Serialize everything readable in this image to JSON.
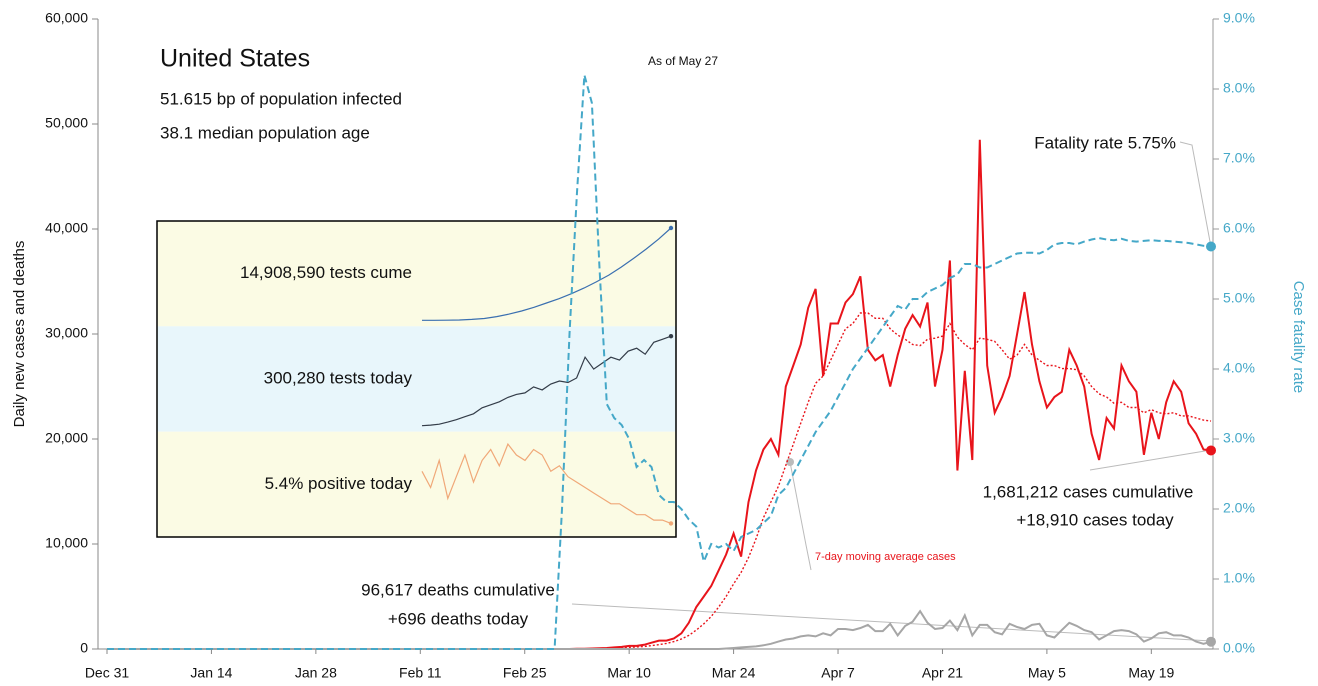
{
  "chart_data": {
    "type": "line",
    "title": "United States",
    "subtitle": [
      "51.615 bp of population infected",
      "38.1 median population age"
    ],
    "date_note": "As of May 27",
    "ylabel": "Daily new cases and deaths",
    "y2label": "Case fatality rate",
    "annotations": {
      "fatality": "Fatality rate 5.75%",
      "cases": [
        "1,681,212 cases cumulative",
        "+18,910 cases today"
      ],
      "deaths": [
        "96,617 deaths cumulative",
        "+696 deaths today"
      ],
      "moving_average": "7-day moving average cases"
    },
    "ylim": [
      0,
      60000
    ],
    "yticks": [
      0,
      {
        "value": 10000,
        "label": "10,000"
      },
      {
        "value": 20000,
        "label": "20,000"
      },
      {
        "value": 30000,
        "label": "30,000"
      },
      {
        "value": 40000,
        "label": "40,000"
      },
      {
        "value": 50000,
        "label": "50,000"
      },
      {
        "value": 60000,
        "label": "60,000"
      }
    ],
    "y2lim": [
      0,
      9
    ],
    "y2ticks": [
      {
        "value": 0,
        "label": "0.0%"
      },
      {
        "value": 1,
        "label": "1.0%"
      },
      {
        "value": 2,
        "label": "2.0%"
      },
      {
        "value": 3,
        "label": "3.0%"
      },
      {
        "value": 4,
        "label": "4.0%"
      },
      {
        "value": 5,
        "label": "5.0%"
      },
      {
        "value": 6,
        "label": "6.0%"
      },
      {
        "value": 7,
        "label": "7.0%"
      },
      {
        "value": 8,
        "label": "8.0%"
      },
      {
        "value": 9,
        "label": "9.0%"
      }
    ],
    "categories": [
      "Dec 31",
      null,
      null,
      null,
      null,
      null,
      null,
      null,
      null,
      null,
      null,
      null,
      null,
      null,
      "Jan 14",
      null,
      null,
      null,
      null,
      null,
      null,
      null,
      null,
      null,
      null,
      null,
      null,
      null,
      "Jan 28",
      null,
      null,
      null,
      null,
      null,
      null,
      null,
      null,
      null,
      null,
      null,
      null,
      null,
      "Feb 11",
      null,
      null,
      null,
      null,
      null,
      null,
      null,
      null,
      null,
      null,
      null,
      null,
      null,
      "Feb 25",
      null,
      null,
      null,
      null,
      null,
      null,
      null,
      null,
      null,
      null,
      null,
      null,
      null,
      "Mar 10",
      null,
      null,
      null,
      null,
      null,
      null,
      null,
      null,
      null,
      null,
      null,
      null,
      null,
      "Mar 24",
      null,
      null,
      null,
      null,
      null,
      null,
      null,
      null,
      null,
      null,
      null,
      null,
      null,
      "Apr 7",
      null,
      null,
      null,
      null,
      null,
      null,
      null,
      null,
      null,
      null,
      null,
      null,
      null,
      "Apr 21",
      null,
      null,
      null,
      null,
      null,
      null,
      null,
      null,
      null,
      null,
      null,
      null,
      null,
      "May 5",
      null,
      null,
      null,
      null,
      null,
      null,
      null,
      null,
      null,
      null,
      null,
      null,
      null,
      "May 19",
      null,
      null,
      null,
      null,
      null,
      null,
      null,
      null
    ],
    "series": [
      {
        "name": "Daily new cases",
        "color": "#e8141b",
        "dash": "solid",
        "marker_last": true,
        "values": [
          0,
          0,
          0,
          0,
          0,
          0,
          0,
          0,
          0,
          0,
          0,
          0,
          0,
          0,
          0,
          0,
          0,
          0,
          0,
          0,
          0,
          0,
          0,
          0,
          0,
          0,
          0,
          0,
          0,
          0,
          0,
          0,
          0,
          0,
          0,
          0,
          0,
          0,
          0,
          0,
          0,
          0,
          0,
          0,
          0,
          0,
          0,
          0,
          0,
          0,
          0,
          0,
          0,
          0,
          0,
          0,
          0,
          0,
          0,
          0,
          0,
          0,
          0,
          20,
          30,
          50,
          70,
          100,
          150,
          200,
          300,
          300,
          400,
          600,
          800,
          800,
          1000,
          1500,
          2500,
          4000,
          5000,
          6000,
          7500,
          9000,
          11000,
          8800,
          14000,
          17000,
          19000,
          20000,
          18500,
          25000,
          27000,
          29000,
          32500,
          34300,
          26000,
          31000,
          31000,
          33000,
          33800,
          35500,
          28500,
          27500,
          28000,
          25000,
          28000,
          30500,
          31800,
          30700,
          33000,
          25000,
          28500,
          37000,
          17000,
          26500,
          18000,
          48500,
          27000,
          22500,
          24000,
          26000,
          30000,
          34000,
          29000,
          25500,
          23000,
          24000,
          24500,
          28500,
          27000,
          25000,
          20500,
          18000,
          22000,
          21000,
          27000,
          25500,
          24500,
          18500,
          22500,
          20000,
          23500,
          25500,
          24500,
          21500,
          20500,
          19000,
          18910
        ]
      },
      {
        "name": "7-day moving average cases",
        "color": "#e8141b",
        "dash": "dotted",
        "marker_last": false,
        "values": [
          null,
          null,
          null,
          null,
          null,
          null,
          null,
          null,
          null,
          null,
          null,
          null,
          null,
          null,
          null,
          null,
          null,
          null,
          null,
          null,
          null,
          null,
          null,
          null,
          null,
          null,
          null,
          null,
          null,
          null,
          null,
          null,
          null,
          null,
          null,
          null,
          null,
          null,
          null,
          null,
          null,
          null,
          null,
          null,
          null,
          null,
          null,
          null,
          null,
          null,
          null,
          null,
          null,
          null,
          null,
          null,
          null,
          null,
          null,
          null,
          null,
          null,
          null,
          10,
          15,
          25,
          35,
          50,
          75,
          110,
          150,
          190,
          240,
          320,
          420,
          530,
          700,
          950,
          1300,
          1800,
          2400,
          3100,
          4000,
          5000,
          6200,
          7300,
          8700,
          10500,
          12500,
          14000,
          15500,
          17500,
          19500,
          21500,
          23500,
          25300,
          26000,
          27500,
          29000,
          30500,
          31000,
          32000,
          32000,
          31500,
          31500,
          30500,
          29900,
          29500,
          29000,
          28900,
          29500,
          29600,
          29800,
          31000,
          29700,
          29000,
          28500,
          29600,
          29500,
          29300,
          28500,
          27600,
          28000,
          29000,
          28000,
          27500,
          27000,
          27000,
          26700,
          26700,
          26600,
          26000,
          25000,
          24300,
          24000,
          23400,
          23500,
          23000,
          23000,
          22500,
          22800,
          22500,
          22400,
          22500,
          22200,
          22200,
          22000,
          21800,
          21700
        ]
      },
      {
        "name": "Daily new deaths",
        "color": "#a6a6a6",
        "dash": "solid",
        "marker_last": true,
        "values": [
          0,
          0,
          0,
          0,
          0,
          0,
          0,
          0,
          0,
          0,
          0,
          0,
          0,
          0,
          0,
          0,
          0,
          0,
          0,
          0,
          0,
          0,
          0,
          0,
          0,
          0,
          0,
          0,
          0,
          0,
          0,
          0,
          0,
          0,
          0,
          0,
          0,
          0,
          0,
          0,
          0,
          0,
          0,
          0,
          0,
          0,
          0,
          0,
          0,
          0,
          0,
          0,
          0,
          0,
          0,
          0,
          0,
          0,
          0,
          0,
          0,
          0,
          0,
          0,
          0,
          0,
          0,
          0,
          0,
          0,
          0,
          0,
          0,
          0,
          0,
          0,
          0,
          0,
          0,
          0,
          0,
          0,
          0,
          50,
          100,
          150,
          200,
          250,
          350,
          500,
          700,
          900,
          1000,
          1200,
          1300,
          1200,
          1500,
          1300,
          1900,
          1900,
          1800,
          2000,
          2300,
          1700,
          1700,
          2400,
          1300,
          2200,
          2600,
          3600,
          2500,
          1900,
          2000,
          2700,
          1800,
          3200,
          1300,
          2300,
          2300,
          1600,
          1400,
          2400,
          2100,
          1900,
          2300,
          2400,
          1300,
          1100,
          1800,
          2500,
          2200,
          1800,
          1600,
          900,
          1300,
          1700,
          1800,
          1700,
          1400,
          700,
          1000,
          1500,
          1600,
          1300,
          1300,
          1100,
          700,
          500,
          696
        ]
      },
      {
        "name": "Case fatality rate",
        "color": "#45a8c8",
        "dash": "dashed",
        "axis": "y2",
        "marker_last": true,
        "values": [
          0,
          0,
          0,
          0,
          0,
          0,
          0,
          0,
          0,
          0,
          0,
          0,
          0,
          0,
          0,
          0,
          0,
          0,
          0,
          0,
          0,
          0,
          0,
          0,
          0,
          0,
          0,
          0,
          0,
          0,
          0,
          0,
          0,
          0,
          0,
          0,
          0,
          0,
          0,
          0,
          0,
          0,
          0,
          0,
          0,
          0,
          0,
          0,
          0,
          0,
          0,
          0,
          0,
          0,
          0,
          0,
          0,
          0,
          0,
          0,
          0,
          2.0,
          4.5,
          6.5,
          8.2,
          7.8,
          5.5,
          3.5,
          3.3,
          3.2,
          3.0,
          2.6,
          2.7,
          2.6,
          2.2,
          2.1,
          2.1,
          2.0,
          1.85,
          1.75,
          1.25,
          1.5,
          1.45,
          1.5,
          1.4,
          1.6,
          1.65,
          1.7,
          1.8,
          1.9,
          2.2,
          2.3,
          2.5,
          2.7,
          2.9,
          3.1,
          3.25,
          3.4,
          3.6,
          3.8,
          4.0,
          4.15,
          4.3,
          4.45,
          4.6,
          4.75,
          4.9,
          4.85,
          5.0,
          5.0,
          5.1,
          5.15,
          5.2,
          5.3,
          5.35,
          5.5,
          5.5,
          5.45,
          5.45,
          5.5,
          5.55,
          5.6,
          5.65,
          5.66,
          5.66,
          5.65,
          5.7,
          5.78,
          5.8,
          5.8,
          5.78,
          5.82,
          5.85,
          5.87,
          5.85,
          5.84,
          5.86,
          5.83,
          5.82,
          5.83,
          5.84,
          5.83,
          5.83,
          5.82,
          5.81,
          5.8,
          5.78,
          5.76,
          5.75
        ]
      }
    ],
    "inset": {
      "rows": [
        {
          "label": "14,908,590 tests cume",
          "color": "#3a6fb0",
          "background": "#fbfbe4",
          "ylim": [
            0,
            14908590
          ],
          "values": [
            0,
            5000,
            20000,
            60000,
            150000,
            300000,
            600000,
            1000000,
            1500000,
            2100000,
            2800000,
            3500000,
            4300000,
            5200000,
            6200000,
            7300000,
            8600000,
            10000000,
            11500000,
            13100000,
            14908590
          ]
        },
        {
          "label": "300,280 tests today",
          "color": "#333c48",
          "background": "#e8f6fb",
          "ylim": [
            0,
            310000
          ],
          "values": [
            0,
            2000,
            5000,
            12000,
            20000,
            30000,
            40000,
            60000,
            70000,
            80000,
            95000,
            105000,
            110000,
            130000,
            120000,
            140000,
            150000,
            145000,
            160000,
            230000,
            190000,
            210000,
            230000,
            220000,
            250000,
            260000,
            240000,
            280000,
            290000,
            300280
          ]
        },
        {
          "label": "5.4% positive today",
          "color": "#f0a878",
          "background": "#fbfbe4",
          "ylim": [
            4,
            21
          ],
          "values": [
            15,
            12,
            17,
            10,
            14,
            18,
            13,
            17,
            19,
            16,
            20,
            18,
            17,
            19,
            18,
            15,
            16,
            14,
            13,
            12,
            11,
            10,
            9,
            9,
            8,
            7,
            7,
            6,
            6,
            5.4
          ]
        }
      ]
    }
  }
}
